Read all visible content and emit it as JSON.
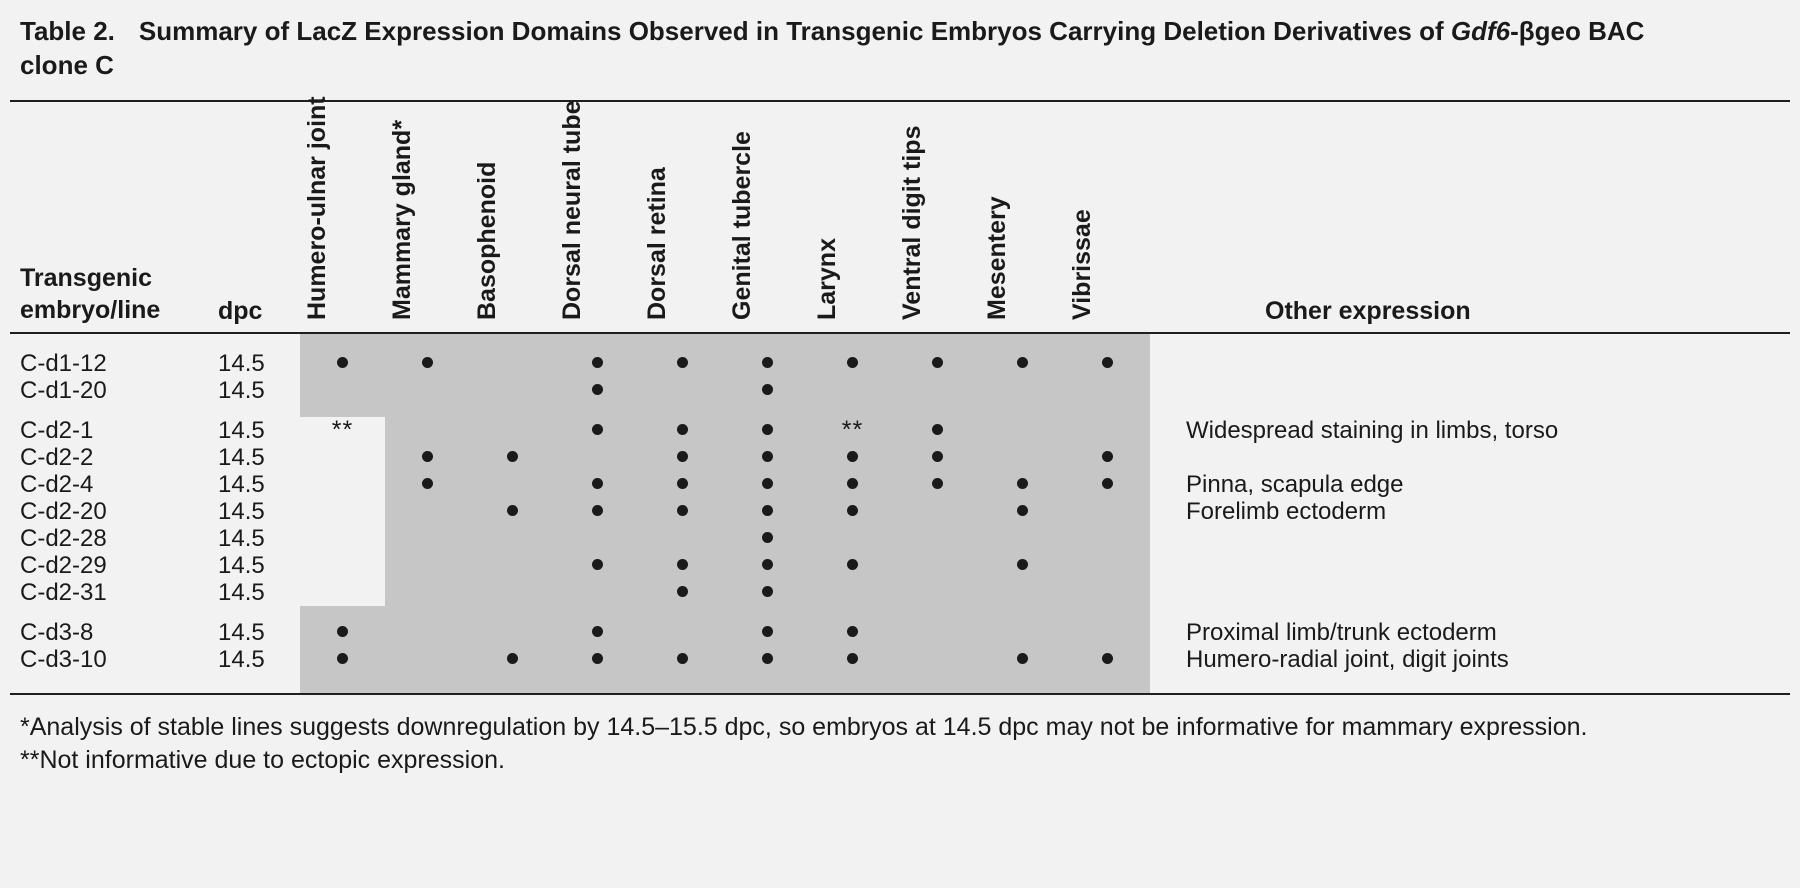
{
  "title": {
    "label": "Table 2.",
    "pre_italic": "Summary of LacZ Expression Domains Observed in Transgenic Embryos Carrying Deletion Derivatives of ",
    "italic": "Gdf6",
    "post_italic": "-βgeo BAC",
    "line2": "clone C"
  },
  "header": {
    "row_label_line1": "Transgenic",
    "row_label_line2": "embryo/line",
    "dpc": "dpc",
    "other": "Other expression",
    "columns": [
      "Humero-ulnar joint",
      "Mammary gland*",
      "Basophenoid",
      "Dorsal neural tube",
      "Dorsal retina",
      "Genital tubercle",
      "Larynx",
      "Ventral digit tips",
      "Mesentery",
      "Vibrissae"
    ]
  },
  "groups": [
    {
      "cutout_col": null,
      "rows": [
        {
          "line": "C-d1-12",
          "dpc": "14.5",
          "marks": [
            "dot",
            "dot",
            "",
            "dot",
            "dot",
            "dot",
            "dot",
            "dot",
            "dot",
            "dot"
          ],
          "other": ""
        },
        {
          "line": "C-d1-20",
          "dpc": "14.5",
          "marks": [
            "",
            "",
            "",
            "dot",
            "",
            "dot",
            "",
            "",
            "",
            ""
          ],
          "other": ""
        }
      ]
    },
    {
      "cutout_col": 0,
      "rows": [
        {
          "line": "C-d2-1",
          "dpc": "14.5",
          "marks": [
            "**",
            "",
            "",
            "dot",
            "dot",
            "dot",
            "**",
            "dot",
            "",
            ""
          ],
          "other": "Widespread staining in limbs, torso"
        },
        {
          "line": "C-d2-2",
          "dpc": "14.5",
          "marks": [
            "",
            "dot",
            "dot",
            "",
            "dot",
            "dot",
            "dot",
            "dot",
            "",
            "dot"
          ],
          "other": ""
        },
        {
          "line": "C-d2-4",
          "dpc": "14.5",
          "marks": [
            "",
            "dot",
            "",
            "dot",
            "dot",
            "dot",
            "dot",
            "dot",
            "dot",
            "dot"
          ],
          "other": "Pinna, scapula edge"
        },
        {
          "line": "C-d2-20",
          "dpc": "14.5",
          "marks": [
            "",
            "",
            "dot",
            "dot",
            "dot",
            "dot",
            "dot",
            "",
            "dot",
            ""
          ],
          "other": "Forelimb ectoderm"
        },
        {
          "line": "C-d2-28",
          "dpc": "14.5",
          "marks": [
            "",
            "",
            "",
            "",
            "",
            "dot",
            "",
            "",
            "",
            ""
          ],
          "other": ""
        },
        {
          "line": "C-d2-29",
          "dpc": "14.5",
          "marks": [
            "",
            "",
            "",
            "dot",
            "dot",
            "dot",
            "dot",
            "",
            "dot",
            ""
          ],
          "other": ""
        },
        {
          "line": "C-d2-31",
          "dpc": "14.5",
          "marks": [
            "",
            "",
            "",
            "",
            "dot",
            "dot",
            "",
            "",
            "",
            ""
          ],
          "other": ""
        }
      ]
    },
    {
      "cutout_col": null,
      "rows": [
        {
          "line": "C-d3-8",
          "dpc": "14.5",
          "marks": [
            "dot",
            "",
            "",
            "dot",
            "",
            "dot",
            "dot",
            "",
            "",
            ""
          ],
          "other": "Proximal limb/trunk ectoderm"
        },
        {
          "line": "C-d3-10",
          "dpc": "14.5",
          "marks": [
            "dot",
            "",
            "dot",
            "dot",
            "dot",
            "dot",
            "dot",
            "",
            "dot",
            "dot"
          ],
          "other": "Humero-radial joint, digit joints"
        }
      ]
    }
  ],
  "footnotes": [
    "*Analysis of stable lines suggests downregulation by 14.5–15.5 dpc, so embryos at 14.5 dpc may not be informative for mammary expression.",
    "**Not informative due to ectopic expression."
  ],
  "colors": {
    "page_bg": "#f2f2f2",
    "matrix_shade": "#c6c6c6",
    "text": "#1a1a1a"
  }
}
